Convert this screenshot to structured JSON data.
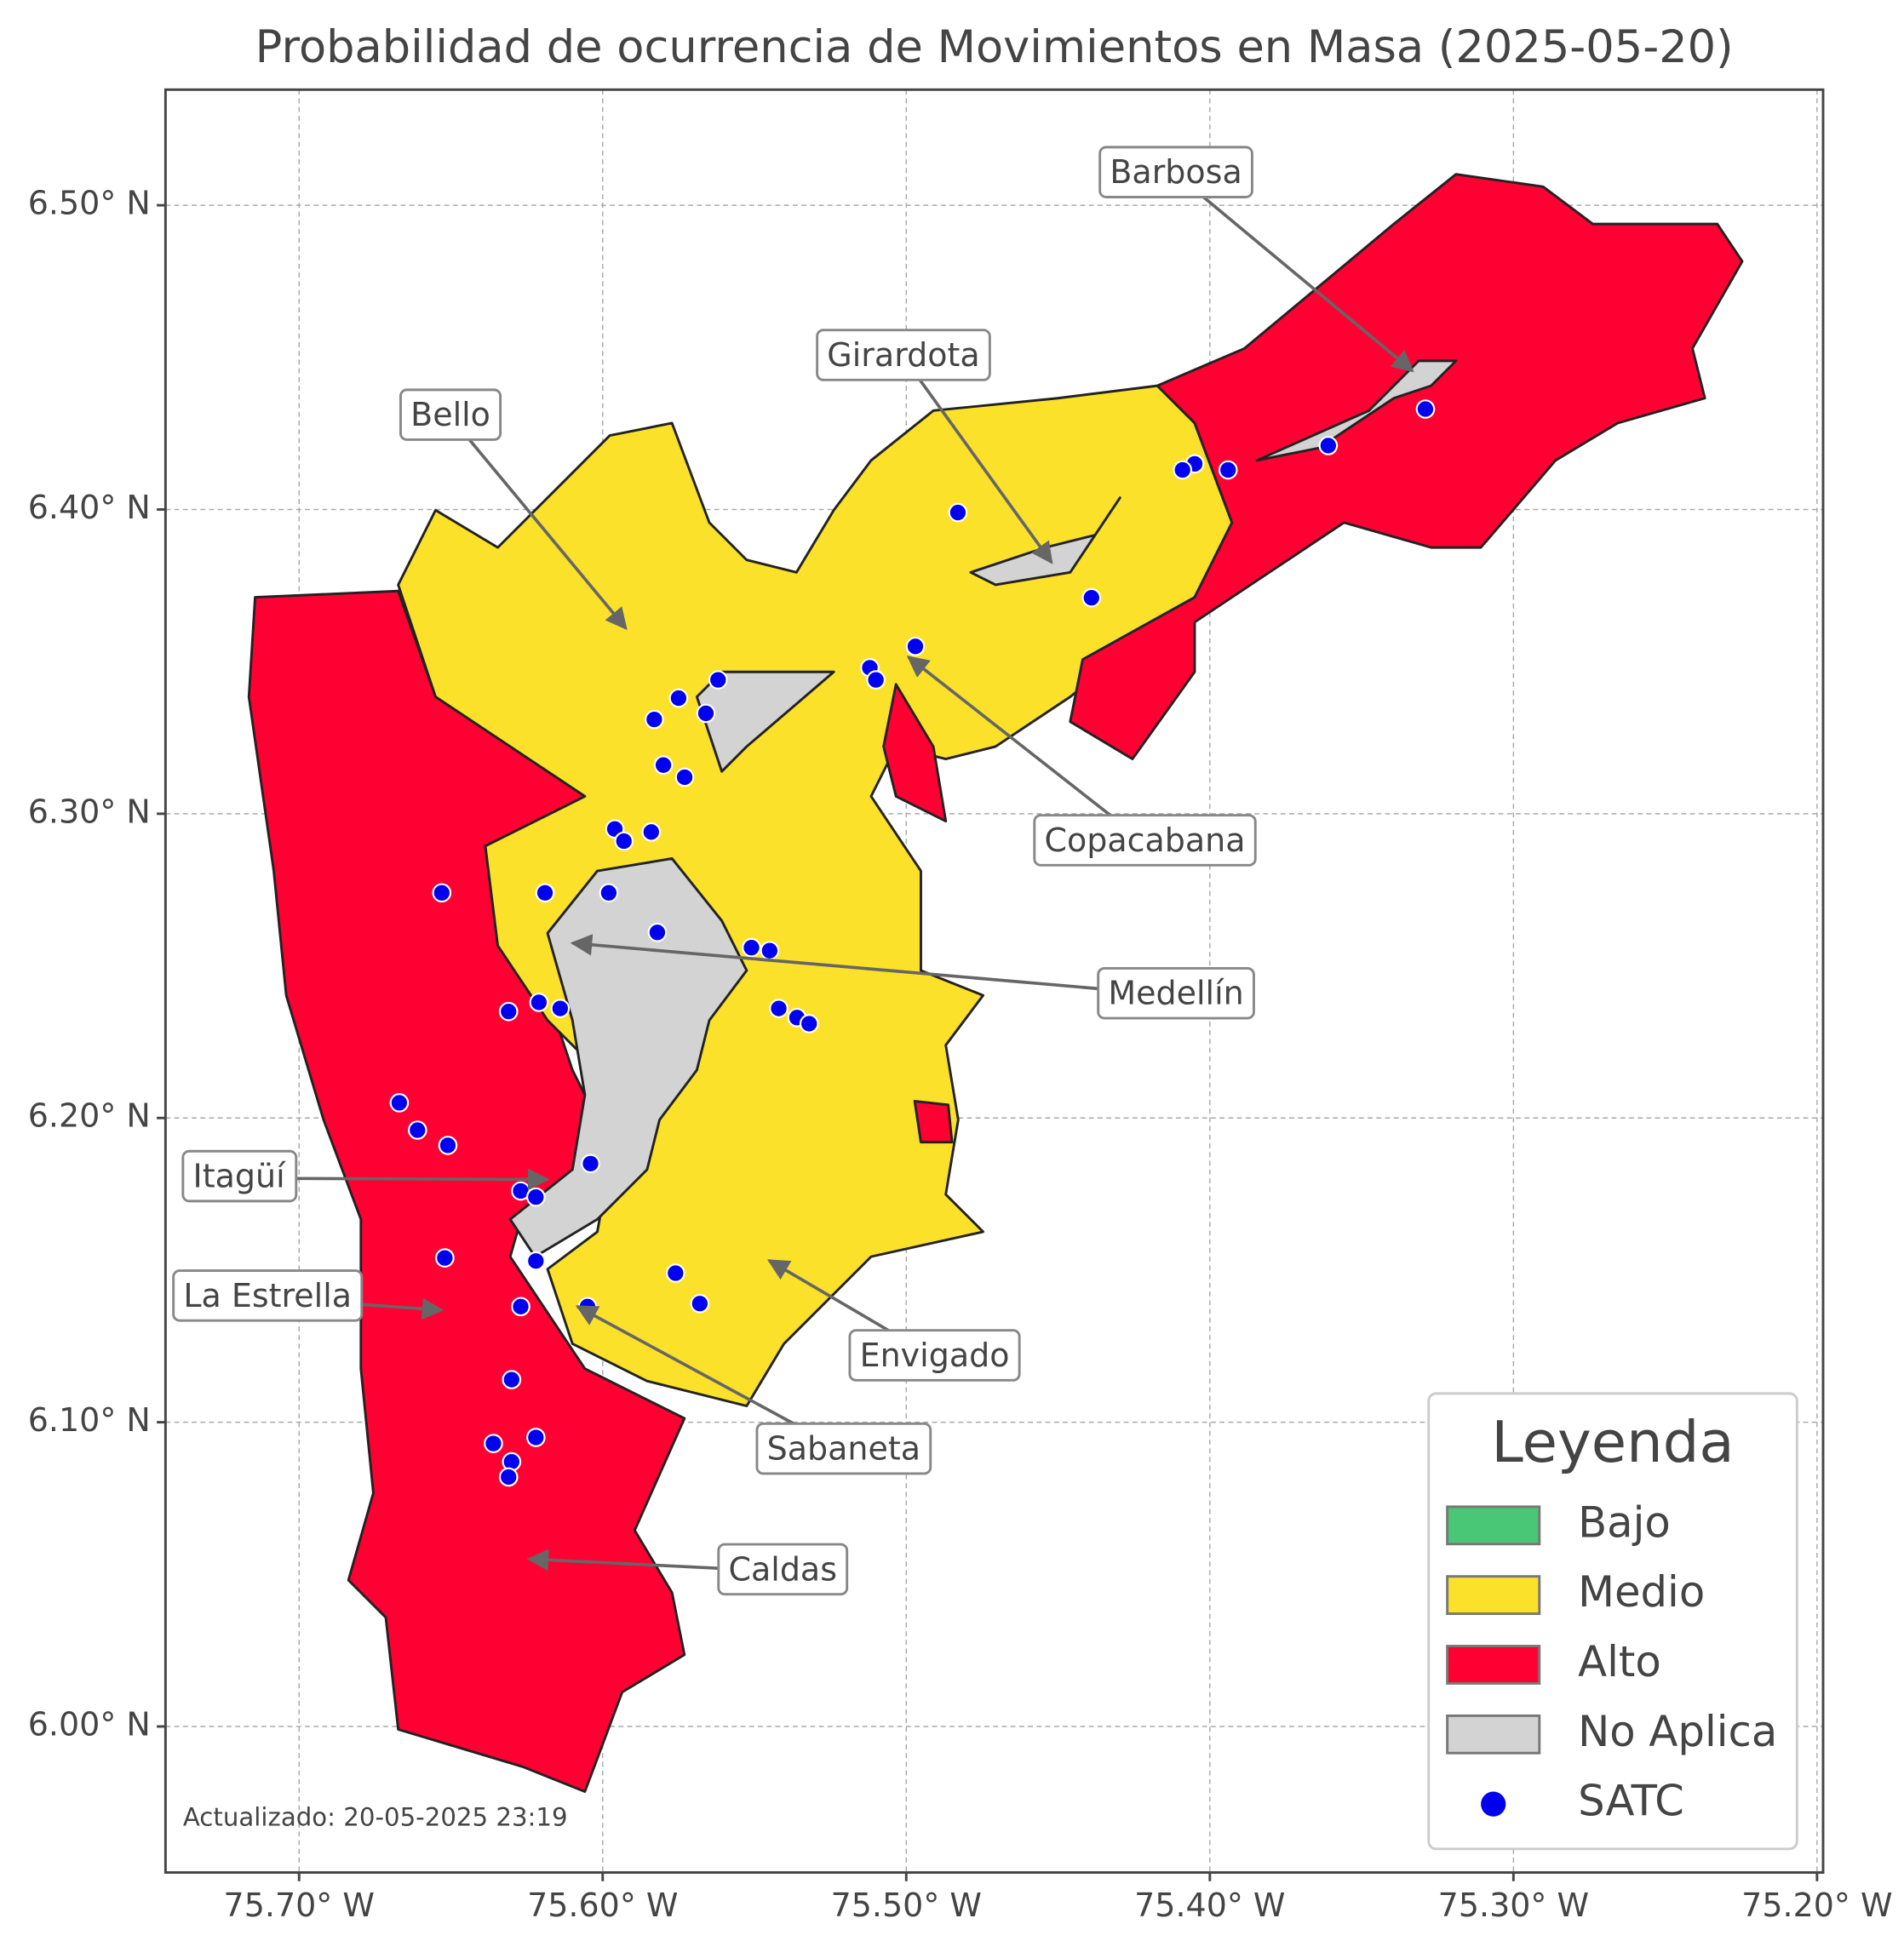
{
  "map": {
    "title": "Probabilidad de ocurrencia de Movimientos en Masa (2025-05-20)",
    "xlim": [
      -75.744,
      -75.198
    ],
    "ylim": [
      5.952,
      6.538
    ],
    "xticks": [
      {
        "value": -75.7,
        "label": "75.70° W"
      },
      {
        "value": -75.6,
        "label": "75.60° W"
      },
      {
        "value": -75.5,
        "label": "75.50° W"
      },
      {
        "value": -75.4,
        "label": "75.40° W"
      },
      {
        "value": -75.3,
        "label": "75.30° W"
      },
      {
        "value": -75.2,
        "label": "75.20° W"
      }
    ],
    "yticks": [
      {
        "value": 6.0,
        "label": "6.00° N"
      },
      {
        "value": 6.1,
        "label": "6.10° N"
      },
      {
        "value": 6.2,
        "label": "6.20° N"
      },
      {
        "value": 6.3,
        "label": "6.30° N"
      },
      {
        "value": 6.4,
        "label": "6.40° N"
      },
      {
        "value": 6.5,
        "label": "6.50° N"
      }
    ],
    "grid": true,
    "labels": [
      "Barbosa",
      "Girardota",
      "Bello",
      "Copacabana",
      "Medellín",
      "Itagüí",
      "La Estrella",
      "Envigado",
      "Sabaneta",
      "Caldas"
    ],
    "footnote": "Actualizado: 20-05-2025 23:19",
    "legend": {
      "title": "Leyenda",
      "items": [
        {
          "name": "Bajo",
          "color": "#4ac776"
        },
        {
          "name": "Medio",
          "color": "#fbe12a"
        },
        {
          "name": "Alto",
          "color": "#ff0033"
        },
        {
          "name": "No Aplica",
          "color": "#d3d3d3"
        },
        {
          "name": "SATC",
          "color": "#0000ee"
        }
      ]
    },
    "stations": {
      "lon": [
        -75.329,
        -75.361,
        -75.394,
        -75.405,
        -75.409,
        -75.483,
        -75.439,
        -75.497,
        -75.512,
        -75.51,
        -75.562,
        -75.575,
        -75.583,
        -75.566,
        -75.58,
        -75.573,
        -75.596,
        -75.593,
        -75.584,
        -75.653,
        -75.619,
        -75.598,
        -75.582,
        -75.551,
        -75.545,
        -75.542,
        -75.536,
        -75.532,
        -75.621,
        -75.631,
        -75.614,
        -75.667,
        -75.661,
        -75.651,
        -75.604,
        -75.627,
        -75.622,
        -75.652,
        -75.622,
        -75.576,
        -75.568,
        -75.627,
        -75.605,
        -75.63,
        -75.636,
        -75.622,
        -75.63,
        -75.631
      ],
      "lat": [
        6.433,
        6.421,
        6.413,
        6.415,
        6.413,
        6.399,
        6.371,
        6.355,
        6.348,
        6.344,
        6.344,
        6.338,
        6.331,
        6.333,
        6.316,
        6.312,
        6.295,
        6.291,
        6.294,
        6.274,
        6.274,
        6.274,
        6.261,
        6.256,
        6.255,
        6.236,
        6.233,
        6.231,
        6.238,
        6.235,
        6.236,
        6.205,
        6.196,
        6.191,
        6.185,
        6.176,
        6.174,
        6.154,
        6.153,
        6.149,
        6.139,
        6.138,
        6.138,
        6.114,
        6.093,
        6.095,
        6.087,
        6.082
      ]
    }
  }
}
